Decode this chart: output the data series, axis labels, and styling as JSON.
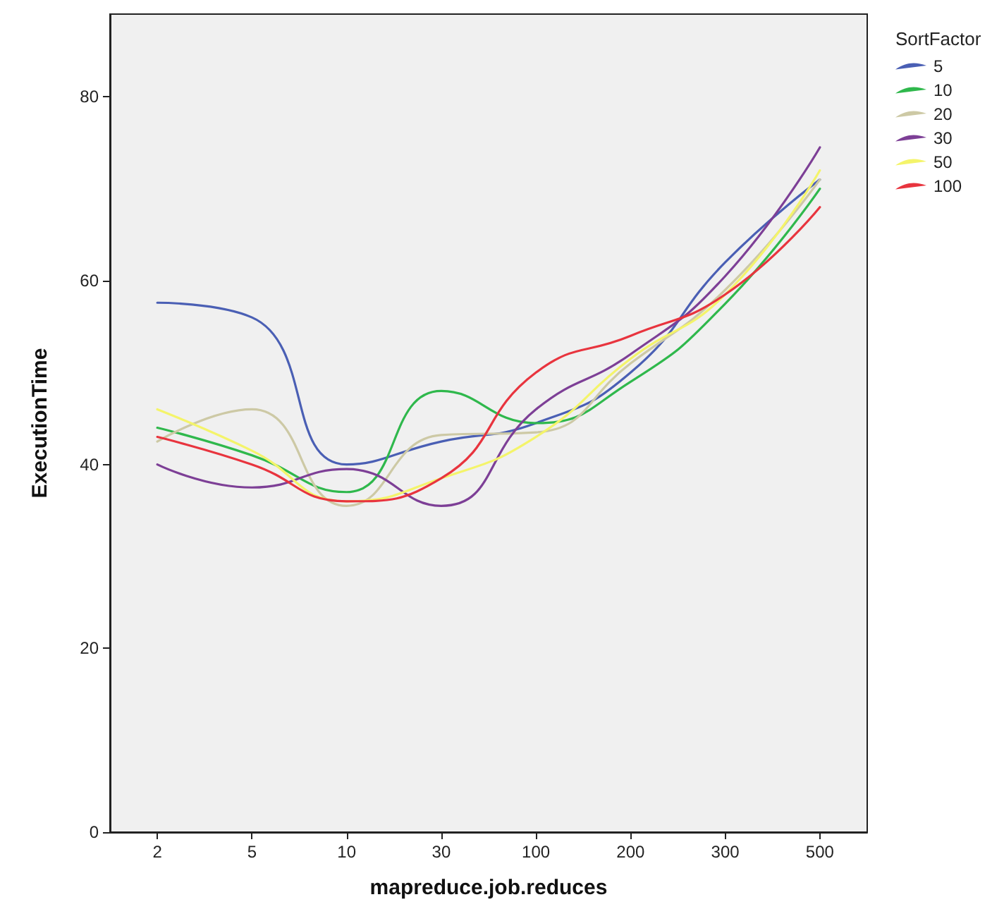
{
  "chart_data": {
    "type": "line",
    "xlabel": "mapreduce.job.reduces",
    "ylabel": "ExecutionTime",
    "legend_title": "SortFactor",
    "categories": [
      "2",
      "5",
      "10",
      "30",
      "100",
      "200",
      "300",
      "500"
    ],
    "series": [
      {
        "name": "5",
        "color": "#4a5fb4",
        "values": [
          57.6,
          56,
          40,
          42.5,
          44.5,
          50,
          62,
          71
        ]
      },
      {
        "name": "10",
        "color": "#2fb84c",
        "values": [
          44,
          41,
          37,
          48,
          44.5,
          49,
          57.5,
          70
        ]
      },
      {
        "name": "20",
        "color": "#cdc9a5",
        "values": [
          42.5,
          46,
          35.5,
          43.2,
          43.5,
          51,
          59,
          71
        ]
      },
      {
        "name": "30",
        "color": "#7d3f96",
        "values": [
          40,
          37.5,
          39.5,
          35.5,
          46,
          52,
          60.5,
          74.5
        ]
      },
      {
        "name": "50",
        "color": "#f4f46a",
        "values": [
          46,
          41.5,
          36,
          38.5,
          43,
          51.5,
          58.5,
          72
        ]
      },
      {
        "name": "100",
        "color": "#e8343e",
        "values": [
          43,
          40,
          36,
          38.5,
          50,
          54,
          58.5,
          68
        ]
      }
    ],
    "ylim": [
      0,
      89
    ],
    "yticks": [
      0,
      20,
      40,
      60,
      80
    ],
    "grid": false,
    "legend": "right",
    "marker": "none",
    "line_style": "solid"
  }
}
